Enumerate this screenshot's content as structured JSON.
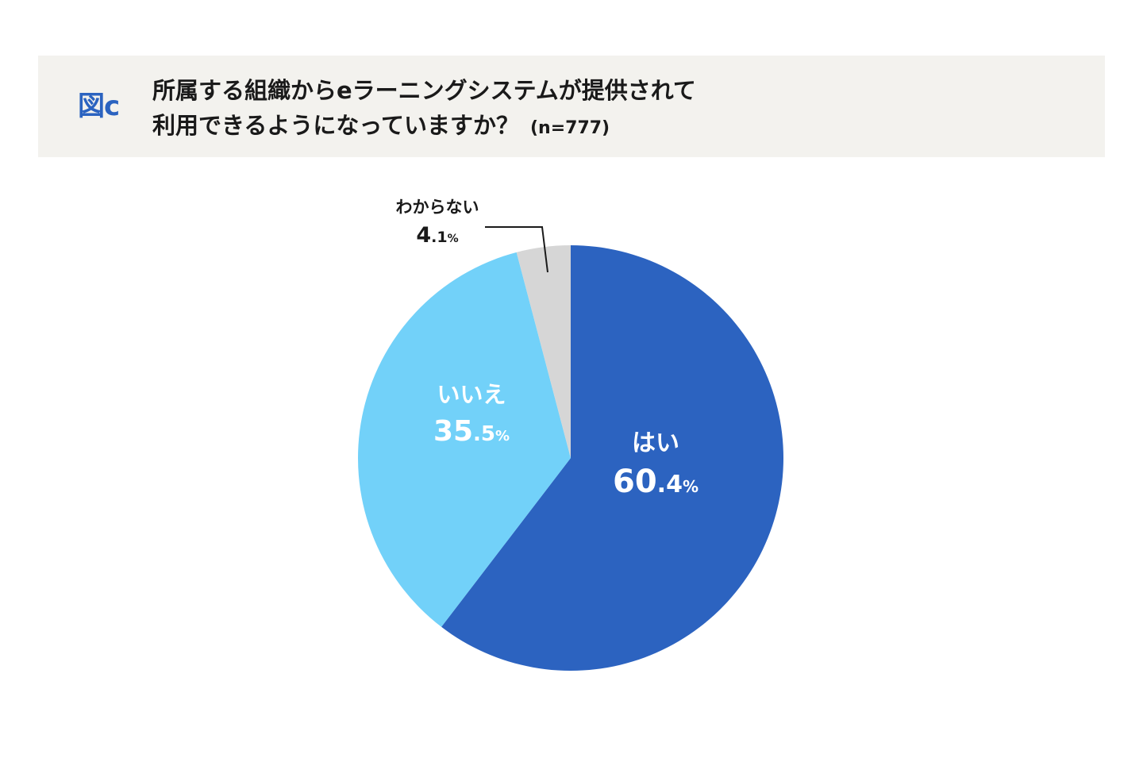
{
  "header": {
    "figure_label": "図c",
    "title_line1": "所属する組織からeラーニングシステムが提供されて",
    "title_line2": "利用できるようになっていますか？",
    "sample_size": "(n=777)"
  },
  "chart_data": {
    "type": "pie",
    "title": "所属する組織からeラーニングシステムが提供されて利用できるようになっていますか？",
    "sample_size": "(n=777)",
    "start": "12 o'clock",
    "direction": "clockwise",
    "slices": [
      {
        "label": "はい",
        "value": 60.4,
        "value_int": "60",
        "value_dec": ".4",
        "unit": "%",
        "color": "#2c63c0",
        "text_color": "#ffffff"
      },
      {
        "label": "いいえ",
        "value": 35.5,
        "value_int": "35",
        "value_dec": ".5",
        "unit": "%",
        "color": "#72d1f9",
        "text_color": "#ffffff"
      },
      {
        "label": "わからない",
        "value": 4.1,
        "value_int": "4",
        "value_dec": ".1",
        "unit": "%",
        "color": "#d6d6d6",
        "text_color": "#1a1a1a"
      }
    ]
  }
}
